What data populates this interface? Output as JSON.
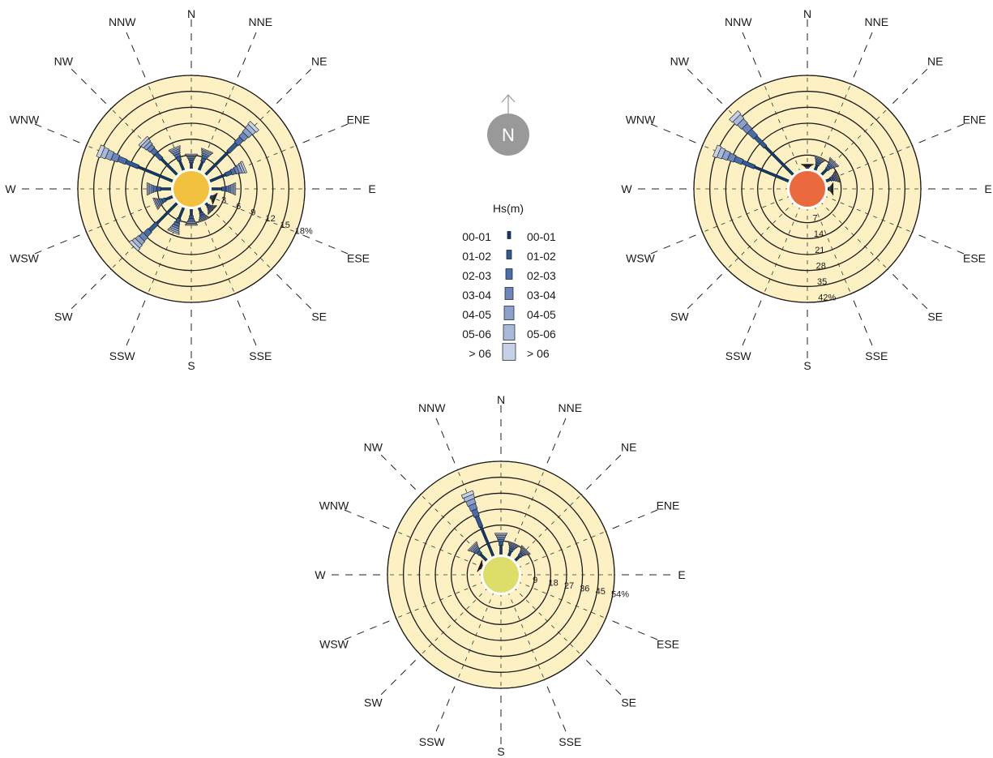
{
  "directions": [
    "N",
    "NNE",
    "NE",
    "ENE",
    "E",
    "ESE",
    "SE",
    "SSE",
    "S",
    "SSW",
    "SW",
    "WSW",
    "W",
    "WNW",
    "NW",
    "NNW"
  ],
  "north_arrow": {
    "label": "N"
  },
  "legend": {
    "title": "Hs(m)",
    "classes": [
      "00-01",
      "01-02",
      "02-03",
      "03-04",
      "04-05",
      "05-06",
      "> 06"
    ],
    "colors": [
      "#0b3d73",
      "#2f5a98",
      "#4a6ea9",
      "#6a86bb",
      "#8ba1cc",
      "#a8b9da",
      "#c6d0e6"
    ]
  },
  "chart_data": [
    {
      "type": "wind-rose",
      "title": "",
      "center_color": "#f2c23e",
      "ring_color": "#fdf1c3",
      "max_percent": 18,
      "rings": [
        3,
        6,
        9,
        12,
        15,
        18
      ],
      "ring_labels": [
        "3",
        "6",
        "9",
        "12",
        "15",
        "18%"
      ],
      "sector_totals_percent": [
        3.2,
        4.5,
        13.5,
        7.5,
        5.0,
        1.5,
        2.3,
        3.0,
        3.5,
        5.5,
        12.0,
        4.0,
        5.0,
        15.5,
        9.5,
        5.0
      ]
    },
    {
      "type": "wind-rose",
      "title": "",
      "center_color": "#ea6a3e",
      "ring_color": "#fdf1c3",
      "max_percent": 42,
      "rings": [
        7,
        14,
        21,
        28,
        35,
        42
      ],
      "ring_labels": [
        "7",
        "14",
        "21",
        "28",
        "35",
        "42%"
      ],
      "sector_totals_percent": [
        3.0,
        7.0,
        9.0,
        6.5,
        3.5,
        0,
        0,
        0,
        0,
        0,
        0,
        0,
        0,
        36,
        38,
        0
      ]
    },
    {
      "type": "wind-rose",
      "title": "",
      "center_color": "#dddd6a",
      "ring_color": "#fdf1c3",
      "max_percent": 54,
      "rings": [
        9,
        18,
        27,
        36,
        45,
        54
      ],
      "ring_labels": [
        "9",
        "18",
        "27",
        "36",
        "45",
        "54%"
      ],
      "sector_totals_percent": [
        13.5,
        9.0,
        10.0,
        0,
        0,
        0,
        0,
        0,
        0,
        0,
        0,
        0,
        0,
        3.0,
        13.0,
        40.0
      ]
    }
  ]
}
